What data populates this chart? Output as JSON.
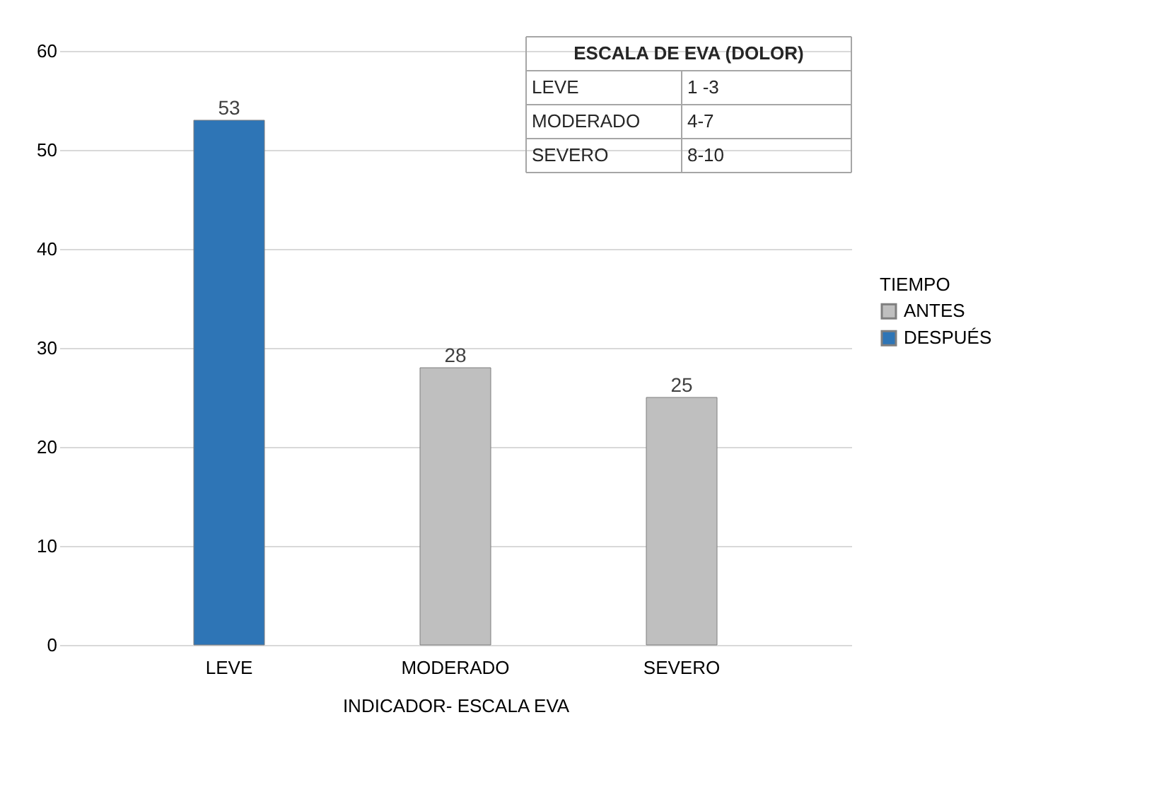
{
  "chart_data": {
    "type": "bar",
    "xlabel": "INDICADOR- ESCALA EVA",
    "legend_title": "TIEMPO",
    "categories": [
      "LEVE",
      "MODERADO",
      "SEVERO"
    ],
    "series": [
      {
        "name": "ANTES",
        "color": "#bfbfbf",
        "values": [
          null,
          28,
          25
        ]
      },
      {
        "name": "DESPUÉS",
        "color": "#2e75b6",
        "values": [
          53,
          null,
          null
        ]
      }
    ],
    "stacked": true,
    "data_labels": true,
    "ylim": [
      0,
      60
    ],
    "yticks": [
      0,
      10,
      20,
      30,
      40,
      50,
      60
    ],
    "grid": "y",
    "legend": "right",
    "annotations": [
      "ESCALA DE EVA (DOLOR)",
      "LEVE",
      "1 -3",
      "MODERADO",
      "4-7",
      "SEVERO",
      "8-10"
    ]
  }
}
